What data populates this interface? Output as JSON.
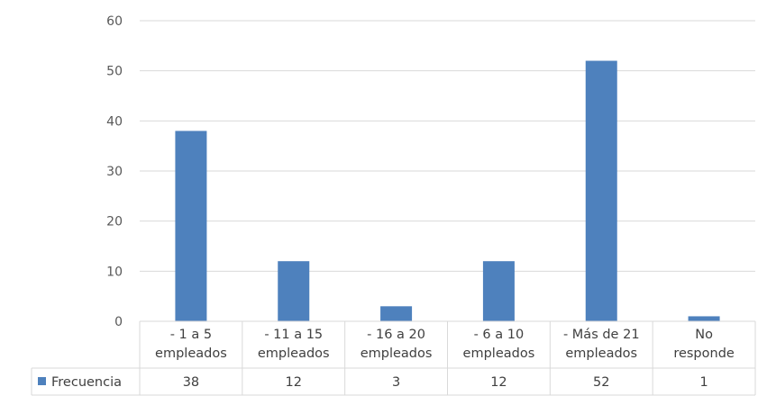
{
  "chart_data": {
    "type": "bar",
    "categories": [
      [
        "- 1 a 5",
        "empleados"
      ],
      [
        "- 11 a 15",
        "empleados"
      ],
      [
        "- 16 a 20",
        "empleados"
      ],
      [
        "- 6 a 10",
        "empleados"
      ],
      [
        "- Más de 21",
        "empleados"
      ],
      [
        "No",
        "responde"
      ]
    ],
    "series": [
      {
        "name": "Frecuencia",
        "values": [
          38,
          12,
          3,
          12,
          52,
          1
        ],
        "color": "#4e81bd"
      }
    ],
    "yticks": [
      "0",
      "10",
      "20",
      "30",
      "40",
      "50",
      "60"
    ],
    "ylim": [
      0,
      60
    ],
    "grid": true,
    "legend": "data-table"
  }
}
